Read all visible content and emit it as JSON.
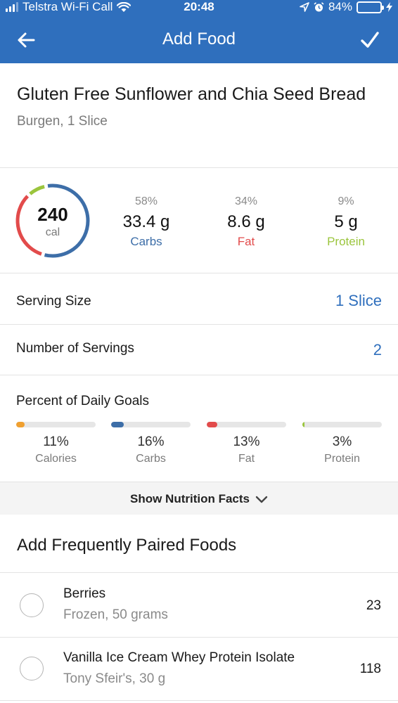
{
  "status_bar": {
    "carrier": "Telstra Wi-Fi Call",
    "time": "20:48",
    "battery": "84%",
    "battery_level": 0.84
  },
  "nav": {
    "title": "Add Food"
  },
  "food": {
    "name": "Gluten Free Sunflower and Chia Seed Bread",
    "subtitle": "Burgen, 1 Slice"
  },
  "summary": {
    "calories": "240",
    "calories_unit": "cal",
    "macros": [
      {
        "pct": "58%",
        "value": "33.4 g",
        "label": "Carbs",
        "color": "#3d6ea8"
      },
      {
        "pct": "34%",
        "value": "8.6 g",
        "label": "Fat",
        "color": "#e24b4b"
      },
      {
        "pct": "9%",
        "value": "5 g",
        "label": "Protein",
        "color": "#9bc53d"
      }
    ]
  },
  "serving_size": {
    "label": "Serving Size",
    "value": "1 Slice"
  },
  "servings": {
    "label": "Number of Servings",
    "value": "2"
  },
  "daily_goals": {
    "title": "Percent of Daily Goals",
    "items": [
      {
        "pct": "11%",
        "label": "Calories",
        "fraction": 0.11,
        "color": "#f0a030"
      },
      {
        "pct": "16%",
        "label": "Carbs",
        "fraction": 0.16,
        "color": "#3d6ea8"
      },
      {
        "pct": "13%",
        "label": "Fat",
        "fraction": 0.13,
        "color": "#e24b4b"
      },
      {
        "pct": "3%",
        "label": "Protein",
        "fraction": 0.03,
        "color": "#9bc53d"
      }
    ]
  },
  "nutrition_facts": {
    "label": "Show Nutrition Facts"
  },
  "paired_foods": {
    "title": "Add Frequently Paired Foods",
    "items": [
      {
        "name": "Berries",
        "detail": "Frozen, 50 grams",
        "calories": "23"
      },
      {
        "name": "Vanilla Ice Cream Whey Protein Isolate",
        "detail": "Tony Sfeir's, 30 g",
        "calories": "118"
      }
    ]
  },
  "icons": {
    "back": "arrow-left-icon",
    "save": "checkmark-icon",
    "expand": "chevron-down-icon",
    "wifi": "wifi-icon",
    "location": "location-arrow-icon",
    "alarm": "alarm-icon",
    "charging": "lightning-icon"
  }
}
